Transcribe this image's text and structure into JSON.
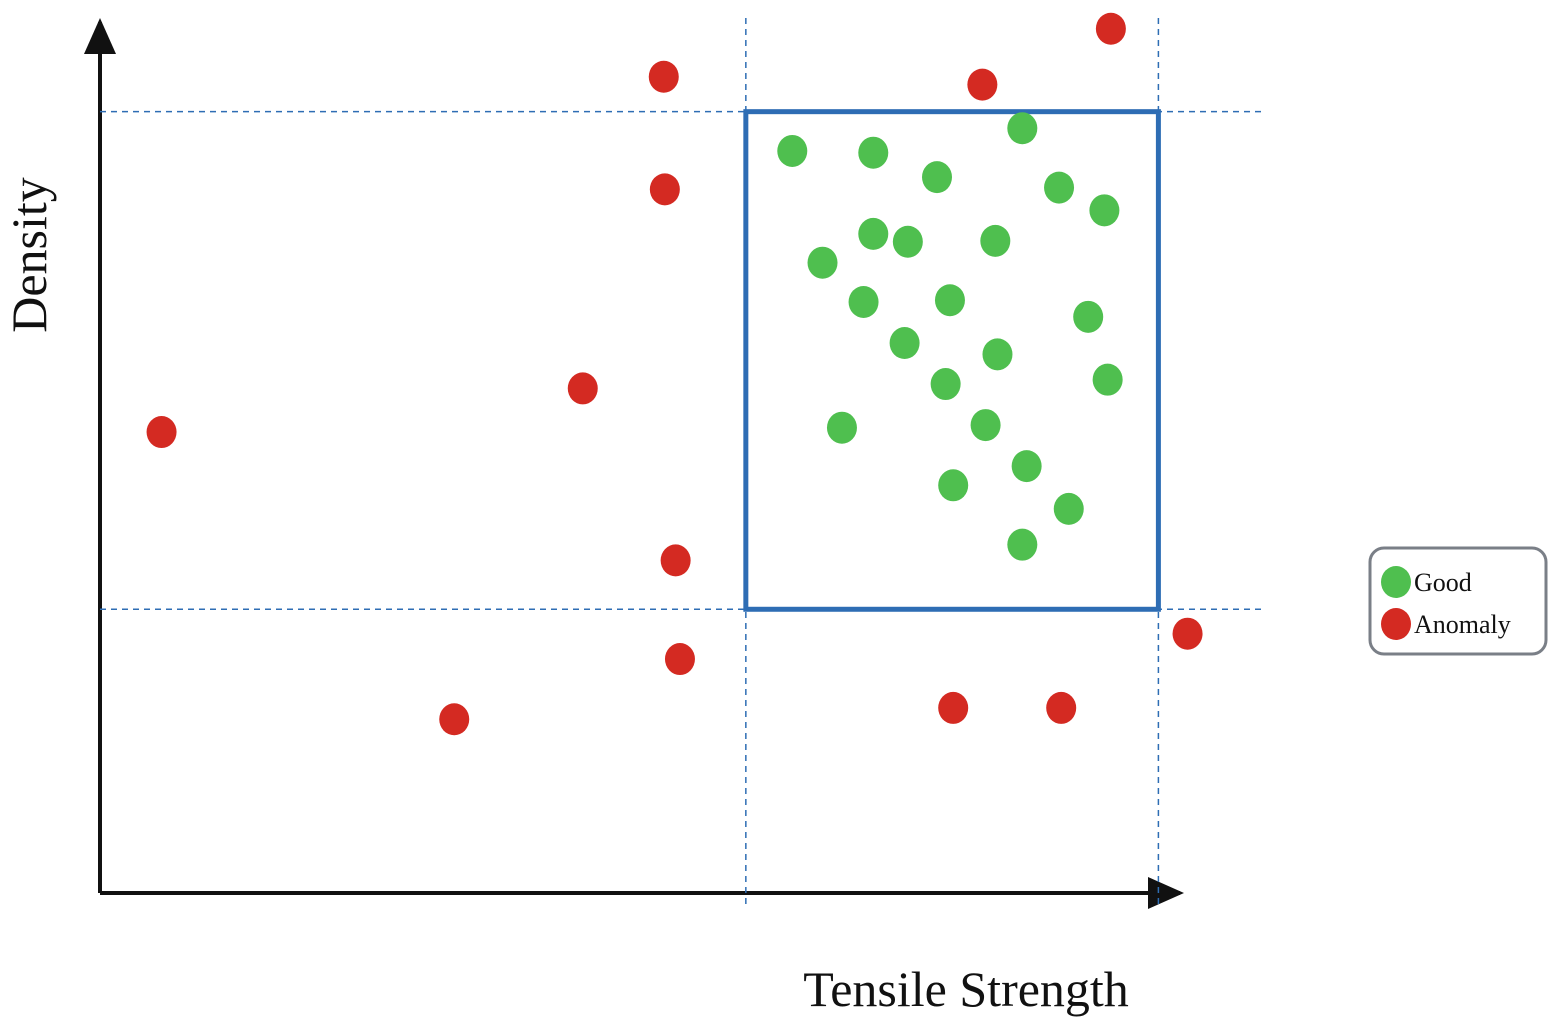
{
  "chart_data": {
    "type": "scatter",
    "x_label": "Tensile Strength",
    "y_label": "Density",
    "xlim": [
      0,
      105
    ],
    "ylim": [
      0,
      100
    ],
    "threshold_box": {
      "xlim": [
        59.8,
        98
      ],
      "ylim": [
        32.5,
        89.5
      ],
      "color": "#2e6db4"
    },
    "legend": "right",
    "series": [
      {
        "name": "Good",
        "color": "#4fbf4f",
        "x": [
          64.1,
          71.6,
          77.5,
          85.4,
          88.8,
          93.0,
          71.6,
          74.8,
          82.9,
          66.9,
          70.7,
          78.7,
          91.5,
          74.5,
          83.1,
          78.3,
          93.3,
          68.7,
          82.0,
          85.8,
          79.0,
          89.7,
          85.4
        ],
        "values": [
          85.0,
          84.8,
          82.0,
          87.6,
          80.8,
          78.2,
          75.5,
          74.6,
          74.7,
          72.2,
          67.7,
          67.9,
          66.0,
          63.0,
          61.7,
          58.3,
          58.8,
          53.3,
          53.6,
          48.9,
          46.7,
          44.0,
          39.9
        ]
      },
      {
        "name": "Anomaly",
        "color": "#d42a22",
        "x": [
          93.6,
          52.2,
          81.7,
          52.3,
          44.7,
          5.7,
          53.3,
          100.7,
          53.7,
          32.8,
          79.0,
          89.0
        ],
        "values": [
          99.0,
          93.5,
          92.6,
          80.6,
          57.8,
          52.8,
          38.1,
          29.7,
          26.8,
          19.9,
          21.2,
          21.2
        ]
      }
    ]
  }
}
